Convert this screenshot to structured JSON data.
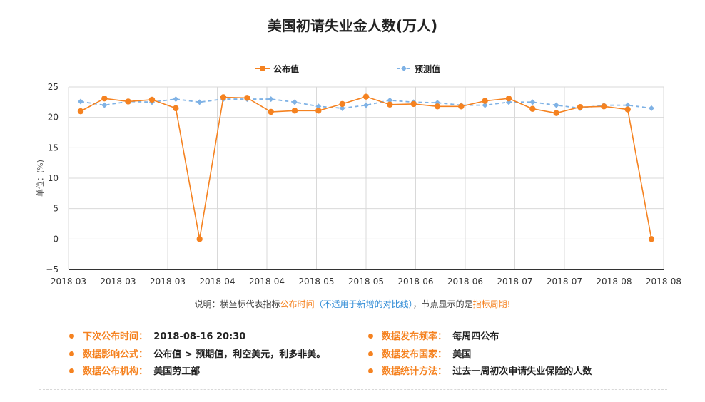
{
  "title": "美国初请失业金人数(万人)",
  "legend": [
    {
      "label": "公布值",
      "color": "#f58220"
    },
    {
      "label": "预测值",
      "color": "#7fb2e5"
    }
  ],
  "chart_data": {
    "type": "line",
    "title": "美国初请失业金人数(万人)",
    "ylabel": "单位：(%)",
    "ylim": [
      -5,
      25
    ],
    "yticks": [
      -5,
      0,
      5,
      10,
      15,
      20,
      25
    ],
    "xticklabels": [
      "2018-03",
      "2018-03",
      "2018-03",
      "2018-04",
      "2018-04",
      "2018-05",
      "2018-05",
      "2018-06",
      "2018-06",
      "2018-07",
      "2018-07",
      "2018-08",
      "2018-08"
    ],
    "grid": true,
    "legend_position": "top",
    "series": [
      {
        "name": "公布值",
        "color": "#f58220",
        "style": "solid",
        "values": [
          21.0,
          23.1,
          22.6,
          22.9,
          21.5,
          0,
          23.3,
          23.2,
          20.9,
          21.1,
          21.1,
          22.2,
          23.4,
          22.1,
          22.2,
          21.8,
          21.8,
          22.7,
          23.1,
          21.4,
          20.7,
          21.7,
          21.8,
          21.3,
          0
        ]
      },
      {
        "name": "预测值",
        "color": "#7fb2e5",
        "style": "dashed",
        "values": [
          22.6,
          22.0,
          22.6,
          22.5,
          23.0,
          22.5,
          23.0,
          23.0,
          23.0,
          22.5,
          21.8,
          21.5,
          22.0,
          22.8,
          22.5,
          22.4,
          22.0,
          22.0,
          22.5,
          22.5,
          22.0,
          21.5,
          22.0,
          22.0,
          21.5
        ]
      }
    ]
  },
  "note": {
    "prefix": "说明：横坐标代表指标",
    "orange1": "公布时间",
    "blue": "（不适用于新增的对比线）",
    "middle": "，节点显示的是",
    "orange2": "指标周期",
    "suffix": "!"
  },
  "info": {
    "next_release_key": "下次公布时间：",
    "next_release_val": "2018-08-16 20:30",
    "formula_key": "数据影响公式：",
    "formula_val": "公布值 > 预期值，利空美元，利多非美。",
    "agency_key": "数据公布机构：",
    "agency_val": "美国劳工部",
    "freq_key": "数据发布频率：",
    "freq_val": "每周四公布",
    "country_key": "数据发布国家：",
    "country_val": "美国",
    "method_key": "数据统计方法：",
    "method_val": "过去一周初次申请失业保险的人数"
  }
}
